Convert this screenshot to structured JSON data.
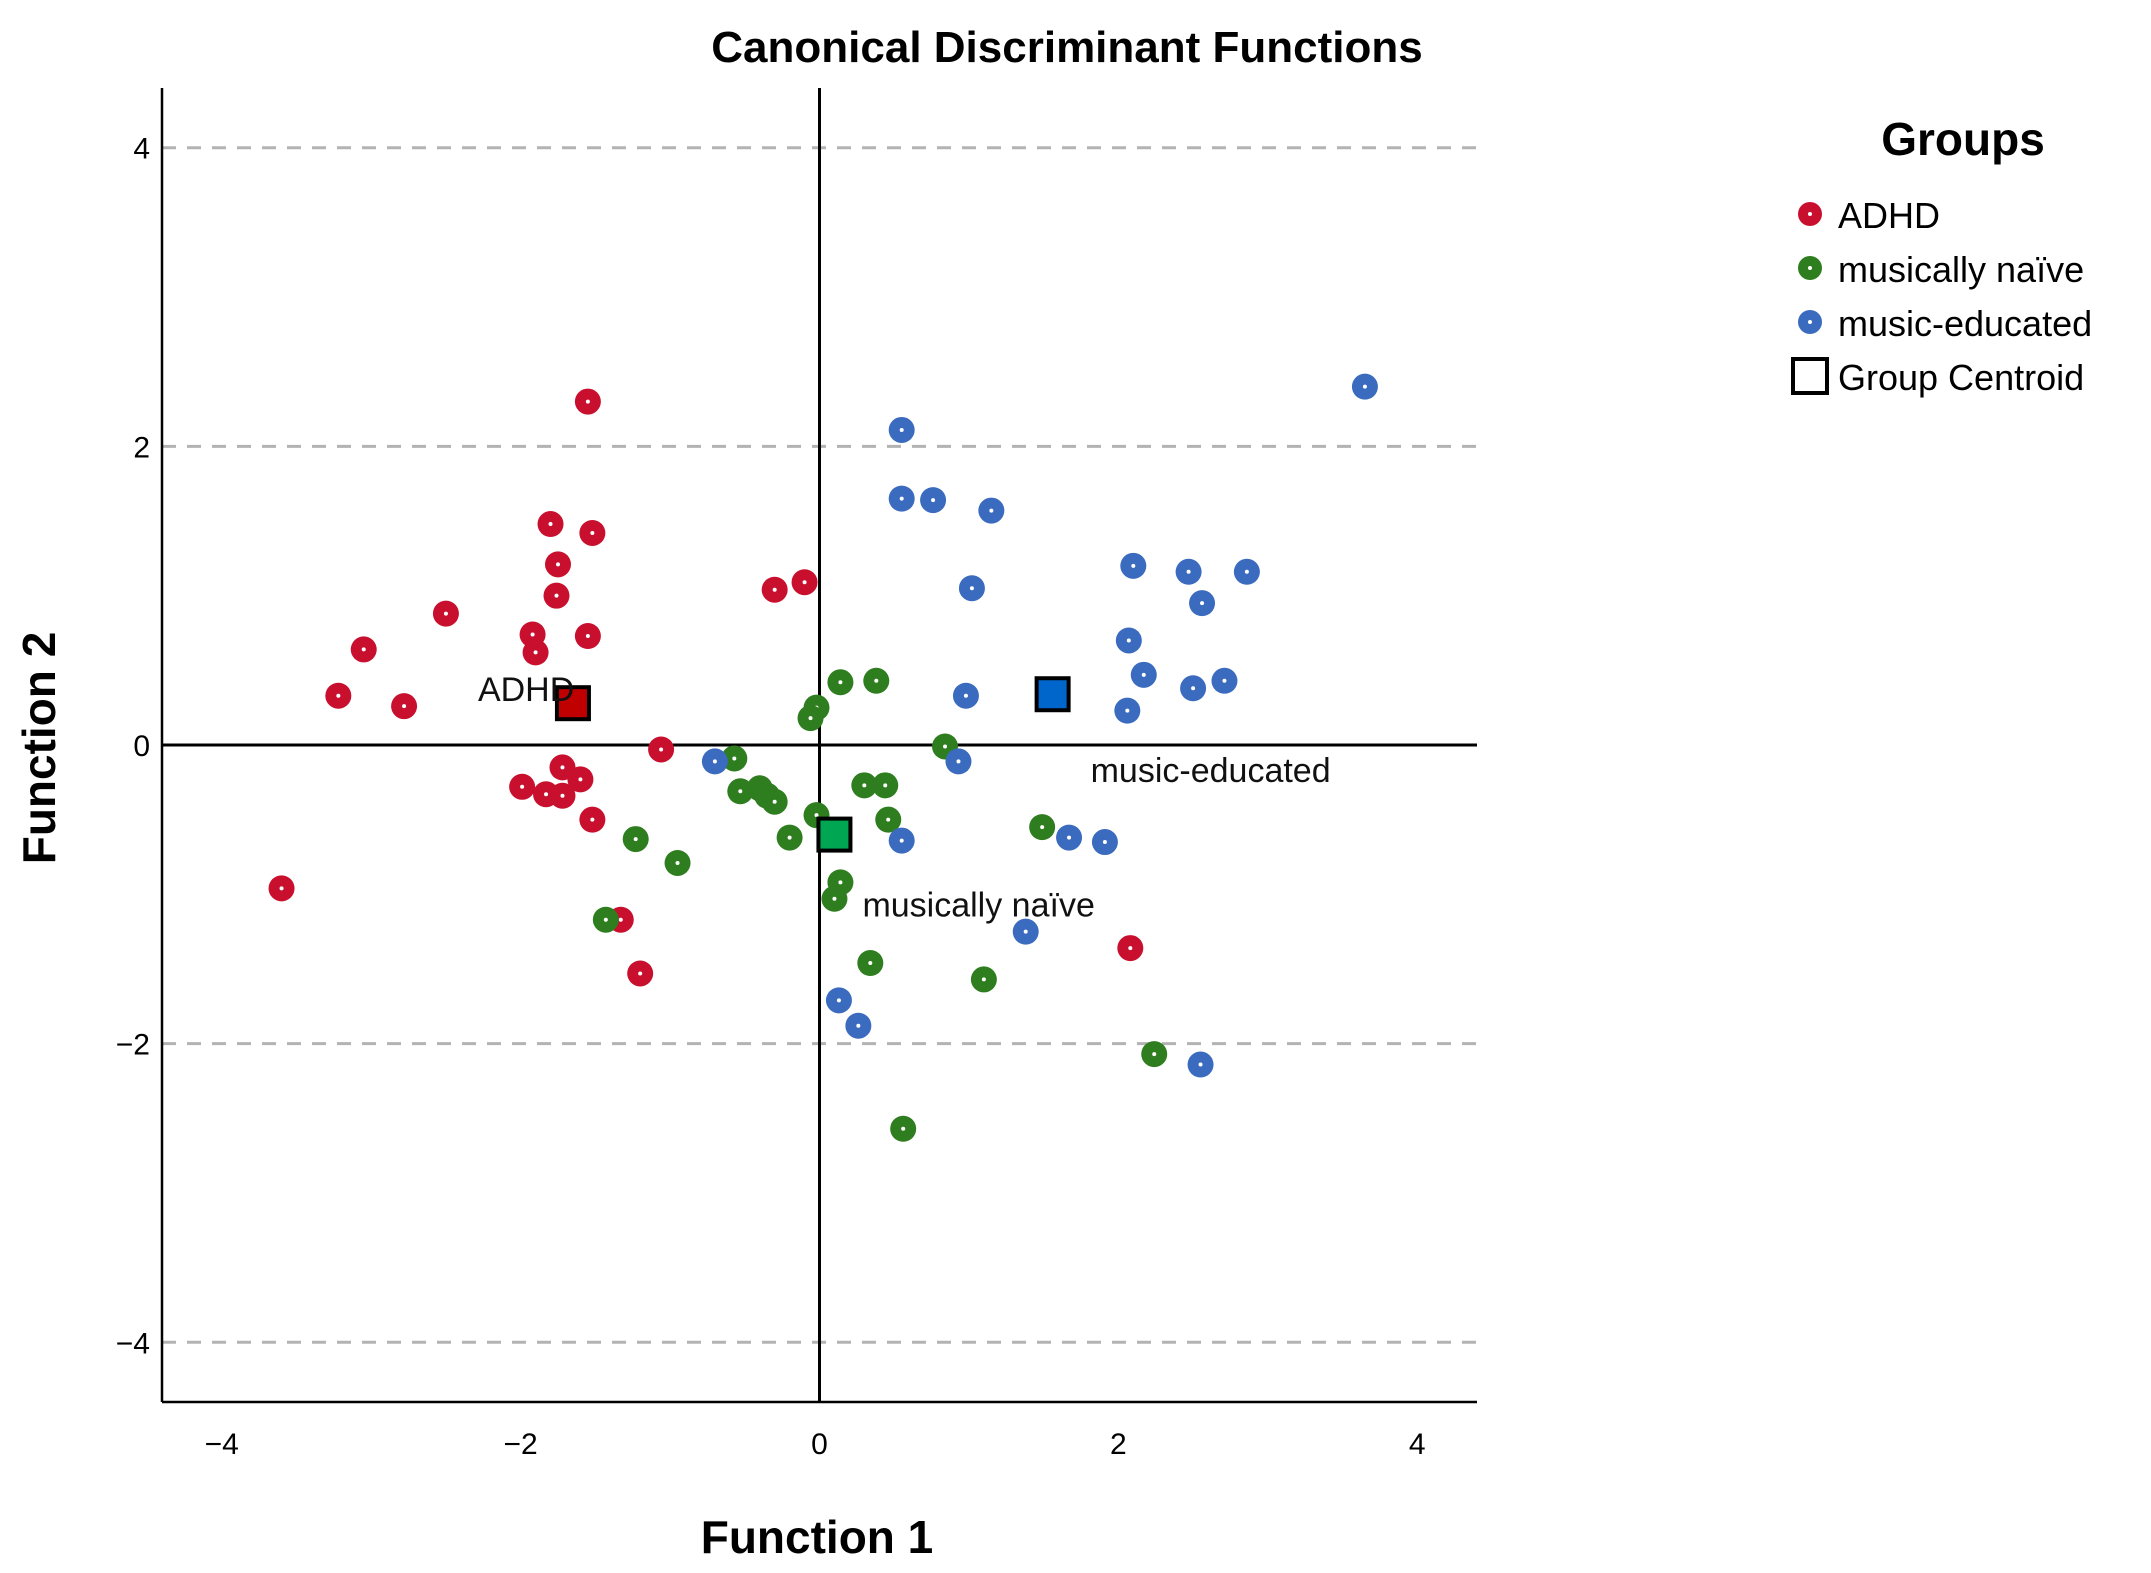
{
  "chart_data": {
    "type": "scatter",
    "title": "Canonical Discriminant Functions",
    "xlabel": "Function 1",
    "ylabel": "Function 2",
    "xlim": [
      -4.4,
      4.4
    ],
    "ylim": [
      -4.4,
      4.4
    ],
    "xticks": [
      -4,
      -2,
      0,
      2,
      4
    ],
    "yticks": [
      -4,
      -2,
      0,
      2,
      4
    ],
    "tick_labels": [
      "−4",
      "−2",
      "0",
      "2",
      "4"
    ],
    "gridlines_y": [
      -4,
      -2,
      2,
      4
    ],
    "legend": {
      "title": "Groups",
      "position": "right",
      "entries": [
        {
          "label": "ADHD",
          "kind": "point",
          "series": 0
        },
        {
          "label": "musically naïve",
          "kind": "point",
          "series": 1
        },
        {
          "label": "music-educated",
          "kind": "point",
          "series": 2
        },
        {
          "label": "Group Centroid",
          "kind": "centroid"
        }
      ]
    },
    "series": [
      {
        "name": "ADHD",
        "color": "#c8102e",
        "points": [
          [
            -1.55,
            2.3
          ],
          [
            -1.8,
            1.48
          ],
          [
            -1.52,
            1.42
          ],
          [
            -1.75,
            1.21
          ],
          [
            -1.76,
            1.0
          ],
          [
            -2.5,
            0.88
          ],
          [
            -1.92,
            0.74
          ],
          [
            -1.55,
            0.73
          ],
          [
            -1.9,
            0.62
          ],
          [
            -3.05,
            0.64
          ],
          [
            -3.22,
            0.33
          ],
          [
            -2.78,
            0.26
          ],
          [
            -0.3,
            1.04
          ],
          [
            -0.1,
            1.09
          ],
          [
            -1.06,
            -0.03
          ],
          [
            -1.72,
            -0.15
          ],
          [
            -1.6,
            -0.23
          ],
          [
            -1.99,
            -0.28
          ],
          [
            -1.83,
            -0.33
          ],
          [
            -1.72,
            -0.34
          ],
          [
            -1.52,
            -0.5
          ],
          [
            -3.6,
            -0.96
          ],
          [
            -1.33,
            -1.17
          ],
          [
            -1.2,
            -1.53
          ],
          [
            2.08,
            -1.36
          ]
        ]
      },
      {
        "name": "musically naïve",
        "color": "#2e7d1e",
        "points": [
          [
            0.14,
            0.42
          ],
          [
            0.38,
            0.43
          ],
          [
            -0.02,
            0.25
          ],
          [
            -0.06,
            0.18
          ],
          [
            0.84,
            -0.01
          ],
          [
            -0.57,
            -0.09
          ],
          [
            -0.4,
            -0.29
          ],
          [
            -0.35,
            -0.34
          ],
          [
            -0.3,
            -0.38
          ],
          [
            -0.53,
            -0.31
          ],
          [
            -0.02,
            -0.47
          ],
          [
            0.3,
            -0.27
          ],
          [
            0.44,
            -0.27
          ],
          [
            0.46,
            -0.5
          ],
          [
            1.49,
            -0.55
          ],
          [
            -1.23,
            -0.63
          ],
          [
            -0.2,
            -0.62
          ],
          [
            -0.95,
            -0.79
          ],
          [
            0.14,
            -0.92
          ],
          [
            0.1,
            -1.03
          ],
          [
            -1.43,
            -1.17
          ],
          [
            0.34,
            -1.46
          ],
          [
            1.1,
            -1.57
          ],
          [
            2.24,
            -2.07
          ],
          [
            0.56,
            -2.57
          ]
        ]
      },
      {
        "name": "music-educated",
        "color": "#3a6bbf",
        "points": [
          [
            3.65,
            2.4
          ],
          [
            0.55,
            2.11
          ],
          [
            0.55,
            1.65
          ],
          [
            0.76,
            1.64
          ],
          [
            1.15,
            1.57
          ],
          [
            2.1,
            1.2
          ],
          [
            2.47,
            1.16
          ],
          [
            2.86,
            1.16
          ],
          [
            1.02,
            1.05
          ],
          [
            2.56,
            0.95
          ],
          [
            2.07,
            0.7
          ],
          [
            2.17,
            0.47
          ],
          [
            2.71,
            0.43
          ],
          [
            2.5,
            0.38
          ],
          [
            0.98,
            0.33
          ],
          [
            2.06,
            0.23
          ],
          [
            -0.7,
            -0.11
          ],
          [
            0.93,
            -0.11
          ],
          [
            0.55,
            -0.64
          ],
          [
            1.67,
            -0.62
          ],
          [
            1.91,
            -0.65
          ],
          [
            1.38,
            -1.25
          ],
          [
            0.13,
            -1.71
          ],
          [
            0.26,
            -1.88
          ],
          [
            2.55,
            -2.14
          ]
        ]
      }
    ],
    "centroids": [
      {
        "group": "ADHD",
        "x": -1.65,
        "y": 0.28,
        "fill": "#c00000",
        "label": "ADHD"
      },
      {
        "group": "musically naïve",
        "x": 0.1,
        "y": -0.6,
        "fill": "#00a651",
        "label": "musically naïve"
      },
      {
        "group": "music-educated",
        "x": 1.56,
        "y": 0.34,
        "fill": "#0066cc",
        "label": "music-educated"
      }
    ]
  }
}
